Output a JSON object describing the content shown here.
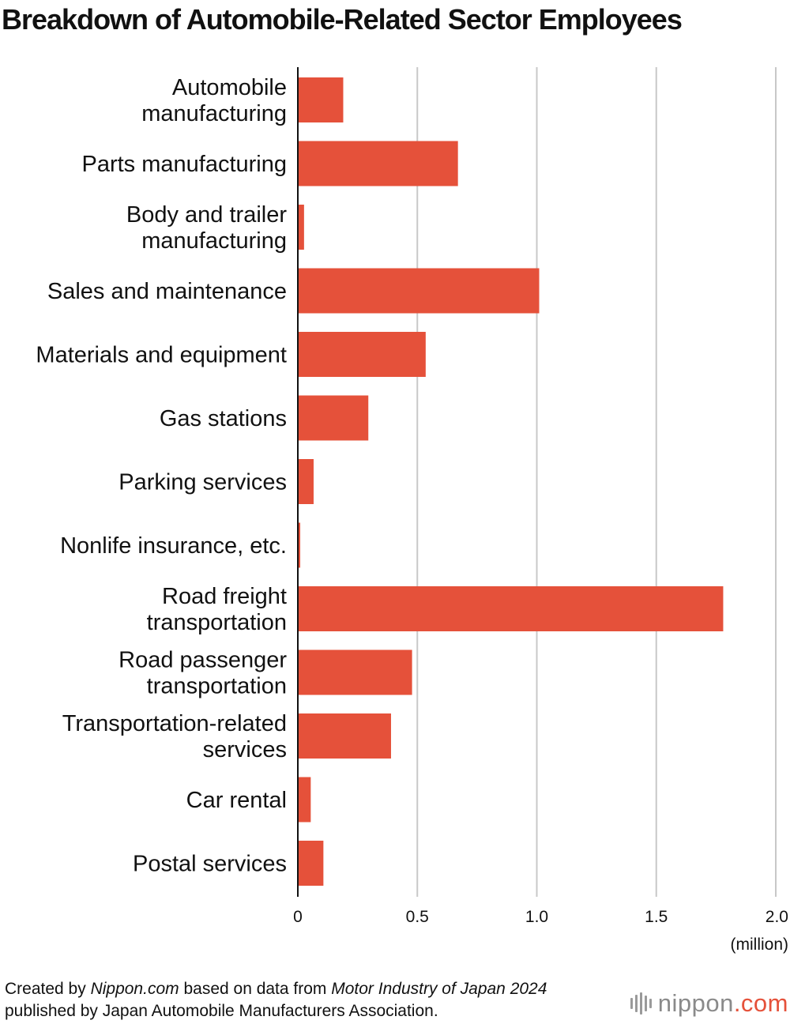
{
  "header": {
    "title": "Breakdown of Automobile-Related Sector Employees"
  },
  "chart_data": {
    "type": "bar",
    "orientation": "horizontal",
    "title": "Breakdown of Automobile-Related Sector Employees",
    "categories": [
      [
        "Automobile",
        "manufacturing"
      ],
      [
        "Parts manufacturing"
      ],
      [
        "Body and trailer",
        "manufacturing"
      ],
      [
        "Sales and maintenance"
      ],
      [
        "Materials and equipment"
      ],
      [
        "Gas stations"
      ],
      [
        "Parking services"
      ],
      [
        "Nonlife insurance, etc."
      ],
      [
        "Road freight",
        "transportation"
      ],
      [
        "Road passenger",
        "transportation"
      ],
      [
        "Transportation-related",
        "services"
      ],
      [
        "Car rental"
      ],
      [
        "Postal services"
      ]
    ],
    "values": [
      0.19,
      0.67,
      0.026,
      1.01,
      0.535,
      0.295,
      0.066,
      0.01,
      1.78,
      0.478,
      0.39,
      0.054,
      0.107
    ],
    "xlim": [
      0,
      2.0
    ],
    "xticks": [
      "0",
      "0.5",
      "1.0",
      "1.5",
      "2.0"
    ],
    "xlabel": "(million)",
    "grid": true,
    "bar_color": "#e5513a",
    "grid_color": "#c8c8c8"
  },
  "footer": {
    "prefix": "Created by ",
    "site": "Nippon.com",
    "middle": " based on data from ",
    "source": "Motor Industry of Japan 2024",
    "suffix": " published by Japan Automobile Manufacturers Association."
  },
  "logo": {
    "name": "nippon",
    "suffix": ".com",
    "icon": "sound-bars-icon"
  }
}
